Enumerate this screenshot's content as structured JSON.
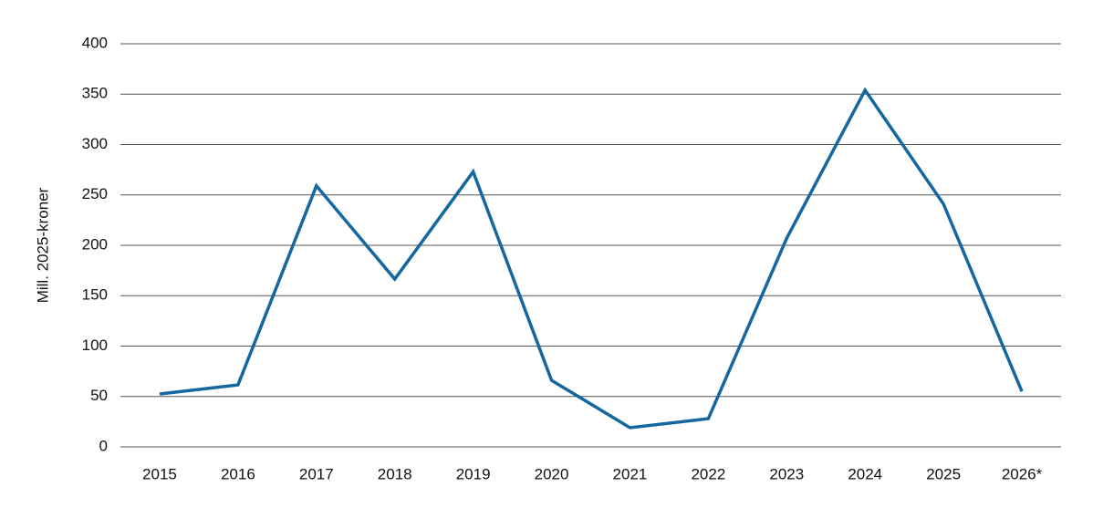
{
  "chart_data": {
    "type": "line",
    "y_label": "Mill. 2025-kroner",
    "categories": [
      "2015",
      "2016",
      "2017",
      "2018",
      "2019",
      "2020",
      "2021",
      "2022",
      "2023",
      "2024",
      "2025",
      "2026*"
    ],
    "values": [
      52.5,
      61.5,
      259,
      166.5,
      273,
      66,
      19,
      28,
      207,
      354,
      241,
      55
    ],
    "color": "#14679f",
    "ylim": [
      0,
      400
    ],
    "yticks": [
      0,
      50,
      100,
      150,
      200,
      250,
      300,
      350,
      400
    ],
    "grid": true
  }
}
